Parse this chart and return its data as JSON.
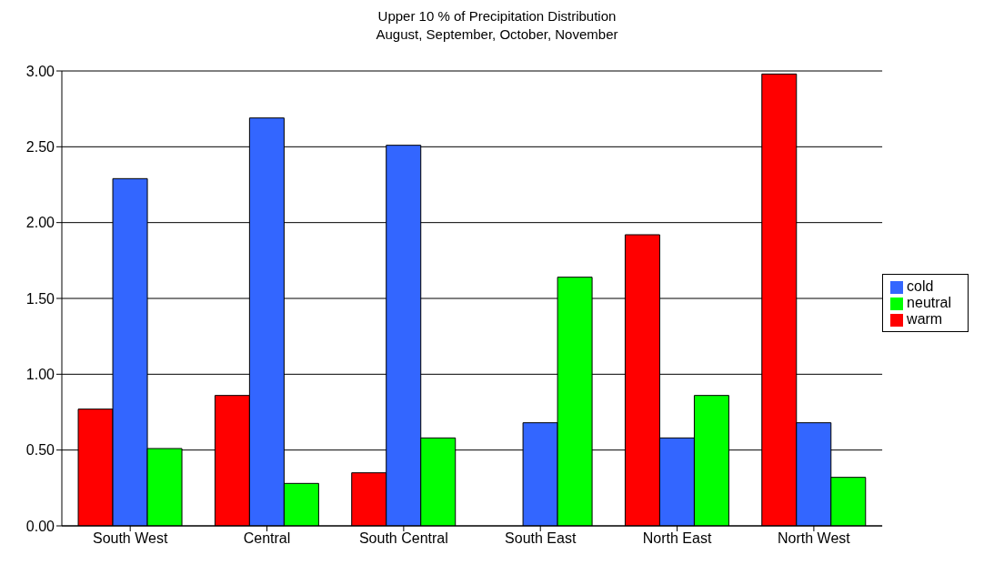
{
  "chart_data": {
    "type": "bar",
    "title": "Upper 10 % of Precipitation Distribution",
    "subtitle": "August, September, October, November",
    "categories": [
      "South West",
      "Central",
      "South Central",
      "South East",
      "North East",
      "North West"
    ],
    "series": [
      {
        "name": "warm",
        "color": "#ff0000",
        "values": [
          0.77,
          0.86,
          0.35,
          0,
          1.92,
          2.98
        ]
      },
      {
        "name": "cold",
        "color": "#3366ff",
        "values": [
          2.29,
          2.69,
          2.51,
          0.68,
          0.58,
          0.68
        ]
      },
      {
        "name": "neutral",
        "color": "#00ff00",
        "values": [
          0.51,
          0.28,
          0.58,
          1.64,
          0.86,
          0.32
        ]
      }
    ],
    "ylim": [
      0,
      3
    ],
    "yticks": [
      {
        "value": 0,
        "label": "0.00"
      },
      {
        "value": 0.5,
        "label": "0.50"
      },
      {
        "value": 1,
        "label": "1.00"
      },
      {
        "value": 1.5,
        "label": "1.50"
      },
      {
        "value": 2,
        "label": "2.00"
      },
      {
        "value": 2.5,
        "label": "2.50"
      },
      {
        "value": 3,
        "label": "3.00"
      }
    ],
    "grid": "y",
    "legend": "right"
  }
}
